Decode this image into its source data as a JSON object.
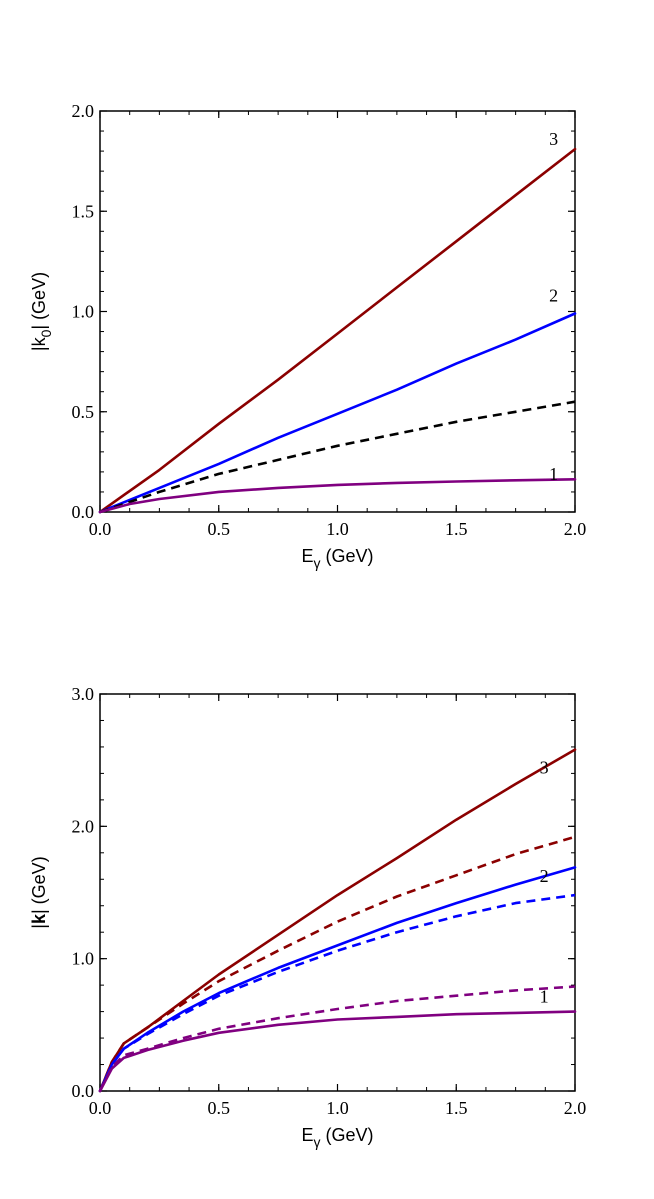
{
  "chart_data": [
    {
      "type": "line",
      "xlabel": {
        "base": "E",
        "sub": "γ",
        "unit": " (GeV)"
      },
      "ylabel": {
        "pre": "|k",
        "sub": "0",
        "post": "| (GeV)"
      },
      "xlim": [
        0,
        2
      ],
      "ylim": [
        0,
        2
      ],
      "xticks": [
        "0.0",
        "0.5",
        "1.0",
        "1.5",
        "2.0"
      ],
      "yticks": [
        "0.0",
        "0.5",
        "1.0",
        "1.5",
        "2.0"
      ],
      "grid": false,
      "series": [
        {
          "label": "3",
          "color": "#8B0000",
          "dash": false,
          "x": [
            0,
            0.25,
            0.5,
            0.75,
            1.0,
            1.25,
            1.5,
            1.75,
            2.0
          ],
          "y": [
            0,
            0.21,
            0.44,
            0.66,
            0.89,
            1.12,
            1.35,
            1.58,
            1.81
          ]
        },
        {
          "label": "2",
          "color": "#0000FF",
          "dash": false,
          "x": [
            0,
            0.25,
            0.5,
            0.75,
            1.0,
            1.25,
            1.5,
            1.75,
            2.0
          ],
          "y": [
            0,
            0.12,
            0.24,
            0.37,
            0.49,
            0.61,
            0.74,
            0.86,
            0.99
          ]
        },
        {
          "label": "",
          "color": "#000000",
          "dash": true,
          "x": [
            0,
            0.25,
            0.5,
            0.75,
            1.0,
            1.25,
            1.5,
            1.75,
            2.0
          ],
          "y": [
            0,
            0.1,
            0.19,
            0.26,
            0.33,
            0.39,
            0.45,
            0.5,
            0.55
          ]
        },
        {
          "label": "1",
          "color": "#800080",
          "dash": false,
          "x": [
            0,
            0.125,
            0.25,
            0.5,
            0.75,
            1.0,
            1.25,
            1.5,
            1.75,
            2.0
          ],
          "y": [
            0,
            0.04,
            0.065,
            0.1,
            0.12,
            0.135,
            0.145,
            0.152,
            0.158,
            0.163
          ]
        }
      ],
      "label_at": {
        "3": [
          1.91,
          1.83
        ],
        "2": [
          1.91,
          1.05
        ],
        "1": [
          1.91,
          0.16
        ]
      }
    },
    {
      "type": "line",
      "xlabel": {
        "base": "E",
        "sub": "γ",
        "unit": " (GeV)"
      },
      "ylabel": {
        "pre": "|",
        "bold": "k",
        "post": "| (GeV)"
      },
      "xlim": [
        0,
        2
      ],
      "ylim": [
        0,
        3
      ],
      "xticks": [
        "0.0",
        "0.5",
        "1.0",
        "1.5",
        "2.0"
      ],
      "yticks": [
        "0.0",
        "1.0",
        "2.0",
        "3.0"
      ],
      "grid": false,
      "series": [
        {
          "label": "3",
          "color": "#8B0000",
          "dash": false,
          "x": [
            0,
            0.05,
            0.1,
            0.2,
            0.35,
            0.5,
            0.75,
            1.0,
            1.25,
            1.5,
            1.75,
            2.0
          ],
          "y": [
            0,
            0.22,
            0.36,
            0.48,
            0.68,
            0.88,
            1.18,
            1.48,
            1.76,
            2.05,
            2.32,
            2.58
          ]
        },
        {
          "label": "",
          "color": "#8B0000",
          "dash": true,
          "x": [
            0,
            0.05,
            0.1,
            0.2,
            0.35,
            0.5,
            0.75,
            1.0,
            1.25,
            1.5,
            1.75,
            2.0
          ],
          "y": [
            0,
            0.22,
            0.36,
            0.48,
            0.66,
            0.83,
            1.06,
            1.28,
            1.47,
            1.63,
            1.79,
            1.92
          ]
        },
        {
          "label": "2",
          "color": "#0000FF",
          "dash": false,
          "x": [
            0,
            0.05,
            0.1,
            0.2,
            0.35,
            0.5,
            0.75,
            1.0,
            1.25,
            1.5,
            1.75,
            2.0
          ],
          "y": [
            0,
            0.2,
            0.32,
            0.44,
            0.6,
            0.74,
            0.93,
            1.1,
            1.27,
            1.42,
            1.56,
            1.69
          ]
        },
        {
          "label": "",
          "color": "#0000FF",
          "dash": true,
          "x": [
            0,
            0.05,
            0.1,
            0.2,
            0.35,
            0.5,
            0.75,
            1.0,
            1.25,
            1.5,
            1.75,
            2.0
          ],
          "y": [
            0,
            0.2,
            0.32,
            0.43,
            0.58,
            0.72,
            0.9,
            1.06,
            1.2,
            1.32,
            1.42,
            1.48
          ]
        },
        {
          "label": "",
          "color": "#800080",
          "dash": true,
          "x": [
            0,
            0.05,
            0.1,
            0.2,
            0.35,
            0.5,
            0.75,
            1.0,
            1.25,
            1.5,
            1.75,
            2.0
          ],
          "y": [
            0,
            0.18,
            0.27,
            0.32,
            0.4,
            0.47,
            0.55,
            0.62,
            0.68,
            0.72,
            0.76,
            0.79
          ]
        },
        {
          "label": "1",
          "color": "#800080",
          "dash": false,
          "x": [
            0,
            0.05,
            0.1,
            0.2,
            0.35,
            0.5,
            0.75,
            1.0,
            1.25,
            1.5,
            1.75,
            2.0
          ],
          "y": [
            0,
            0.17,
            0.25,
            0.31,
            0.38,
            0.44,
            0.5,
            0.54,
            0.56,
            0.58,
            0.59,
            0.6
          ]
        }
      ],
      "label_at": {
        "3": [
          1.87,
          2.4
        ],
        "2": [
          1.87,
          1.58
        ],
        "1": [
          1.87,
          0.67
        ]
      }
    }
  ]
}
